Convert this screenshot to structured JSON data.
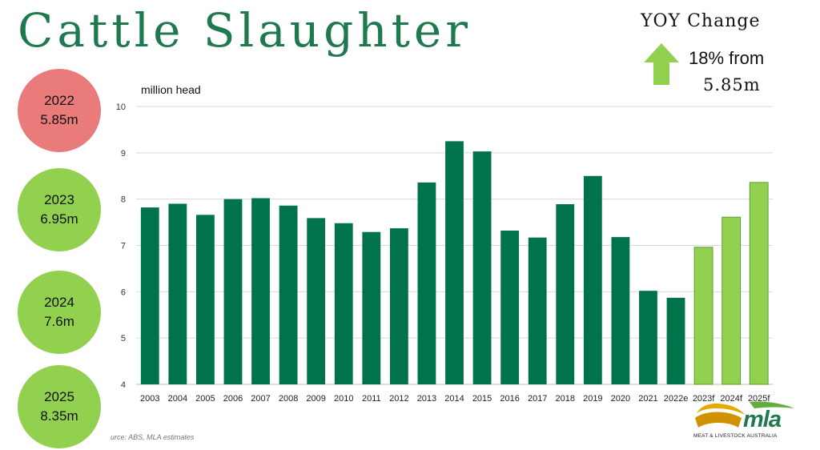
{
  "title": "Cattle Slaughter",
  "yoy": {
    "heading": "YOY Change",
    "arrow_icon": "up-arrow-icon",
    "change": "18% from",
    "base": "5.85m"
  },
  "bubbles": [
    {
      "year": "2022",
      "value": "5.85m",
      "color": "#e97b7b"
    },
    {
      "year": "2023",
      "value": "6.95m",
      "color": "#92d050"
    },
    {
      "year": "2024",
      "value": "7.6m",
      "color": "#92d050"
    },
    {
      "year": "2025",
      "value": "8.35m",
      "color": "#92d050"
    }
  ],
  "source": "urce: ABS, MLA estimates",
  "logo": {
    "name": "mla",
    "tagline": "MEAT & LIVESTOCK AUSTRALIA"
  },
  "colors": {
    "actual": "#00734a",
    "forecast": "#92d050",
    "title": "#1e7a4e"
  },
  "chart_data": {
    "type": "bar",
    "ylabel": "million head",
    "ylim": [
      4,
      10
    ],
    "yticks": [
      4,
      5,
      6,
      7,
      8,
      9,
      10
    ],
    "grid": true,
    "categories": [
      "2003",
      "2004",
      "2005",
      "2006",
      "2007",
      "2008",
      "2009",
      "2010",
      "2011",
      "2012",
      "2013",
      "2014",
      "2015",
      "2016",
      "2017",
      "2018",
      "2019",
      "2020",
      "2021",
      "2022e",
      "2023f",
      "2024f",
      "2025f"
    ],
    "values": [
      7.82,
      7.9,
      7.66,
      8.0,
      8.02,
      7.86,
      7.59,
      7.48,
      7.29,
      7.37,
      8.36,
      9.25,
      9.03,
      7.32,
      7.17,
      7.89,
      8.5,
      7.18,
      6.02,
      5.87,
      6.96,
      7.61,
      8.36
    ],
    "forecast_categories": [
      "2023f",
      "2024f",
      "2025f"
    ]
  }
}
